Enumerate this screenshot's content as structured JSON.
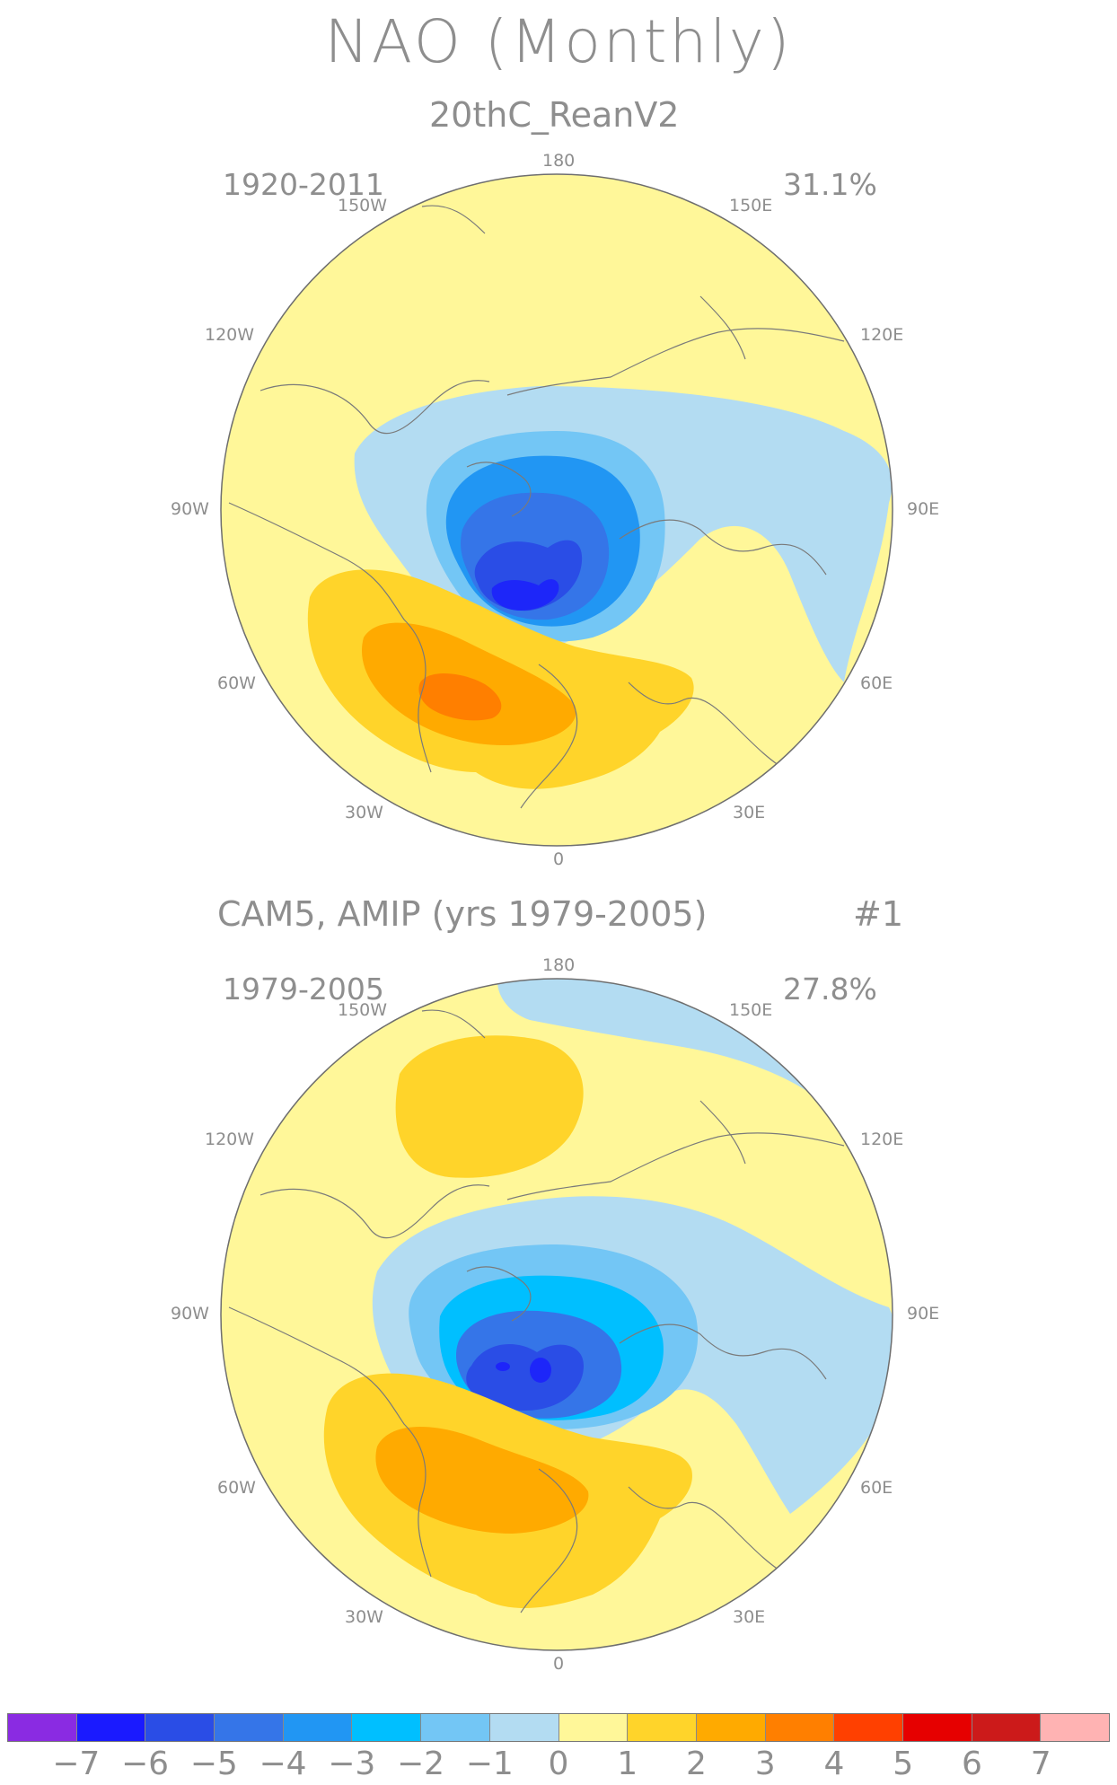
{
  "title": "NAO (Monthly)",
  "panels": [
    {
      "name": "20thC_ReanV2",
      "years": "1920-2011",
      "variance": "31.1%",
      "lon_labels": {
        "n": "180",
        "nw": "150W",
        "ne": "150E",
        "wnw": "120W",
        "ene": "120E",
        "w": "90W",
        "e": "90E",
        "wsw": "60W",
        "ese": "60E",
        "ssw": "30W",
        "sse": "30E",
        "s": "0"
      }
    },
    {
      "name": "CAM5, AMIP (yrs 1979-2005)",
      "member": "#1",
      "years": "1979-2005",
      "variance": "27.8%",
      "lon_labels": {
        "n": "180",
        "nw": "150W",
        "ne": "150E",
        "wnw": "120W",
        "ene": "120E",
        "w": "90W",
        "e": "90E",
        "wsw": "60W",
        "ese": "60E",
        "ssw": "30W",
        "sse": "30E",
        "s": "0"
      }
    }
  ],
  "colorbar": {
    "labels": [
      "-7",
      "-6",
      "-5",
      "-4",
      "-3",
      "-2",
      "-1",
      "0",
      "1",
      "2",
      "3",
      "4",
      "5",
      "6",
      "7"
    ],
    "colors": [
      "#8a2be2",
      "#1a1aff",
      "#2a4de6",
      "#3575e8",
      "#2196f3",
      "#00bfff",
      "#73c6f5",
      "#b3dcf2",
      "#fff799",
      "#ffd42a",
      "#ffaa00",
      "#ff7f00",
      "#ff4000",
      "#e60000",
      "#cc1a1a",
      "#ffb3b3"
    ]
  },
  "colors": {
    "land_line": "#7a7a7a",
    "circle": "#6e6e6e",
    "text": "#8e8e8e"
  }
}
